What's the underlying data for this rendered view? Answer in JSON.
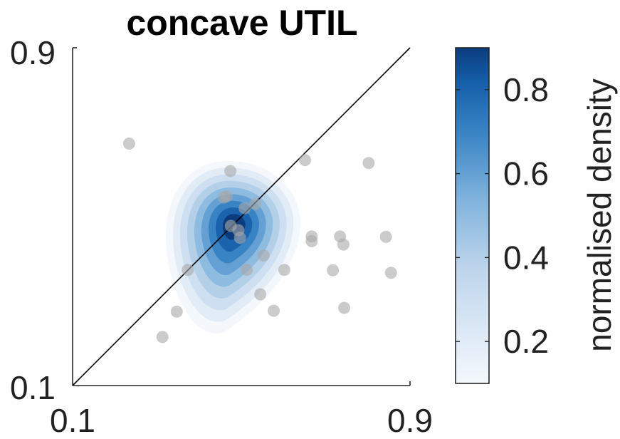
{
  "chart_data": {
    "type": "scatter",
    "title": "concave UTIL",
    "xlabel": "",
    "ylabel": "",
    "xlim": [
      0.1,
      0.9
    ],
    "ylim": [
      0.1,
      0.9
    ],
    "x_tick_labels": [
      "0.1",
      "0.9"
    ],
    "y_tick_labels": [
      "0.1",
      "0.9"
    ],
    "grid": false,
    "identity_line": true,
    "points_color": "#a9a9a9",
    "points": [
      {
        "x": 0.234,
        "y": 0.673
      },
      {
        "x": 0.474,
        "y": 0.608
      },
      {
        "x": 0.651,
        "y": 0.634
      },
      {
        "x": 0.802,
        "y": 0.627
      },
      {
        "x": 0.458,
        "y": 0.545
      },
      {
        "x": 0.465,
        "y": 0.548
      },
      {
        "x": 0.508,
        "y": 0.52
      },
      {
        "x": 0.533,
        "y": 0.53
      },
      {
        "x": 0.475,
        "y": 0.478
      },
      {
        "x": 0.493,
        "y": 0.468
      },
      {
        "x": 0.497,
        "y": 0.45
      },
      {
        "x": 0.667,
        "y": 0.453
      },
      {
        "x": 0.667,
        "y": 0.442
      },
      {
        "x": 0.734,
        "y": 0.453
      },
      {
        "x": 0.742,
        "y": 0.434
      },
      {
        "x": 0.843,
        "y": 0.452
      },
      {
        "x": 0.553,
        "y": 0.408
      },
      {
        "x": 0.373,
        "y": 0.374
      },
      {
        "x": 0.513,
        "y": 0.374
      },
      {
        "x": 0.602,
        "y": 0.374
      },
      {
        "x": 0.717,
        "y": 0.373
      },
      {
        "x": 0.855,
        "y": 0.367
      },
      {
        "x": 0.545,
        "y": 0.316
      },
      {
        "x": 0.577,
        "y": 0.277
      },
      {
        "x": 0.744,
        "y": 0.284
      },
      {
        "x": 0.347,
        "y": 0.275
      },
      {
        "x": 0.313,
        "y": 0.215
      }
    ],
    "density": {
      "center": {
        "x": 0.483,
        "y": 0.48
      },
      "max": 0.9,
      "levels": [
        0.1,
        0.2,
        0.3,
        0.4,
        0.5,
        0.6,
        0.7,
        0.8,
        0.9
      ]
    },
    "colorbar": {
      "label": "normalised density",
      "range": [
        0.1,
        0.9
      ],
      "tick_values": [
        0.2,
        0.4,
        0.6,
        0.8
      ],
      "tick_labels": [
        "0.2",
        "0.4",
        "0.6",
        "0.8"
      ],
      "color_low": "#f4f8fd",
      "color_high": "#0b3c7e"
    }
  }
}
